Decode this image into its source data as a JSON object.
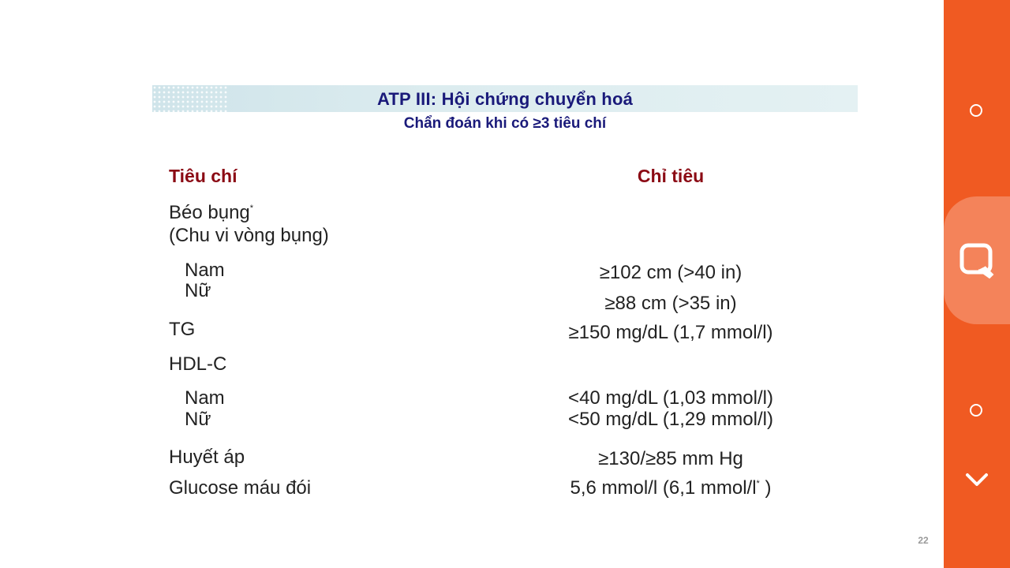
{
  "slide": {
    "title": "ATP III: Hội chứng chuyển hoá",
    "subtitle": "Chẩn đoán khi có ≥3 tiêu chí",
    "headers": {
      "criteria": "Tiêu chí",
      "threshold": "Chỉ tiêu"
    },
    "rows": {
      "abdominal_obesity": "Béo bụng",
      "abdominal_obesity_mark": "*",
      "waist": "(Chu vi vòng bụng)",
      "waist_male": {
        "label": "Nam",
        "value": "≥102 cm (>40 in)"
      },
      "waist_female": {
        "label": "Nữ",
        "value": "≥88 cm (>35 in)"
      },
      "tg": {
        "label": "TG",
        "value": "≥150 mg/dL  (1,7 mmol/l)"
      },
      "hdl": "HDL-C",
      "hdl_male": {
        "label": "Nam",
        "value": "<40 mg/dL (1,03 mmol/l)"
      },
      "hdl_female": {
        "label": "Nữ",
        "value": "<50 mg/dL (1,29 mmol/l)"
      },
      "bp": {
        "label": "Huyết áp",
        "value": "≥130/≥85 mm Hg"
      },
      "glucose": {
        "label": "Glucose máu đói",
        "value": "5,6 mmol/l (6,1 mmol/l",
        "mark": "*",
        "close": " )"
      }
    },
    "page_number": "22"
  },
  "sidebar": {
    "background": "#f05a22",
    "icons": [
      "circle-icon",
      "search-icon",
      "circle-icon",
      "chevron-down-icon"
    ]
  }
}
